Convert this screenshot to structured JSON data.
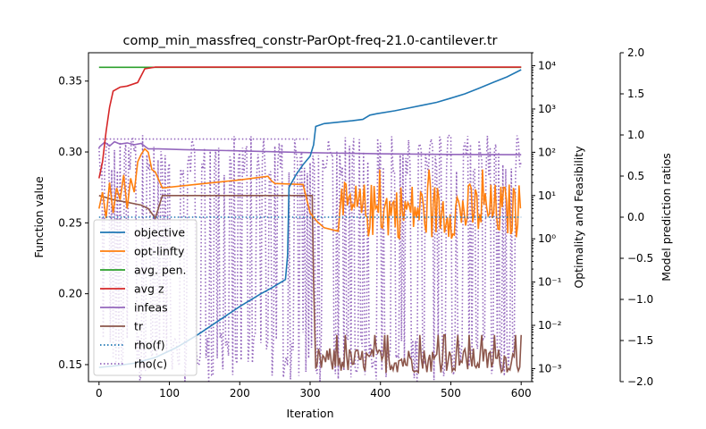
{
  "chart_data": {
    "type": "line",
    "title": "comp_min_massfreq_constr-ParOpt-freq-21.0-cantilever.tr",
    "xlabel": "Iteration",
    "ylabel_left": "Function value",
    "ylabel_right1": "Optimality and Feasibility",
    "ylabel_right2": "Model prediction ratios",
    "xlim": [
      -15,
      615
    ],
    "xticks": [
      0,
      100,
      200,
      300,
      400,
      500,
      600
    ],
    "xtick_labels": [
      "0",
      "100",
      "200",
      "300",
      "400",
      "500",
      "600"
    ],
    "y_left": {
      "lim": [
        0.138,
        0.37
      ],
      "ticks": [
        0.15,
        0.2,
        0.25,
        0.3,
        0.35
      ],
      "tick_labels": [
        "0.15",
        "0.20",
        "0.25",
        "0.30",
        "0.35"
      ]
    },
    "y_right1": {
      "scale": "log",
      "lim": [
        0.0005,
        20000
      ],
      "ticks": [
        0.001,
        0.01,
        0.1,
        1,
        10,
        100,
        1000,
        10000
      ],
      "tick_labels": [
        "10⁻³",
        "10⁻²",
        "10⁻¹",
        "10⁰",
        "10¹",
        "10²",
        "10³",
        "10⁴"
      ]
    },
    "y_right2": {
      "lim": [
        -2.0,
        2.0
      ],
      "ticks": [
        -2.0,
        -1.5,
        -1.0,
        -0.5,
        0.0,
        0.5,
        1.0,
        1.5,
        2.0
      ],
      "tick_labels": [
        "−2.0",
        "−1.5",
        "−1.0",
        "−0.5",
        "0.0",
        "0.5",
        "1.0",
        "1.5",
        "2.0"
      ]
    },
    "legend_position": "lower-left",
    "series": [
      {
        "name": "objective",
        "axis": "left",
        "color": "#1f77b4",
        "style": "solid",
        "points": [
          [
            0,
            0.148
          ],
          [
            20,
            0.149
          ],
          [
            50,
            0.151
          ],
          [
            80,
            0.155
          ],
          [
            110,
            0.162
          ],
          [
            140,
            0.171
          ],
          [
            170,
            0.181
          ],
          [
            200,
            0.191
          ],
          [
            230,
            0.2
          ],
          [
            245,
            0.204
          ],
          [
            265,
            0.21
          ],
          [
            268,
            0.227
          ],
          [
            270,
            0.275
          ],
          [
            280,
            0.284
          ],
          [
            290,
            0.291
          ],
          [
            300,
            0.297
          ],
          [
            305,
            0.305
          ],
          [
            308,
            0.318
          ],
          [
            320,
            0.32
          ],
          [
            340,
            0.321
          ],
          [
            360,
            0.322
          ],
          [
            375,
            0.323
          ],
          [
            385,
            0.326
          ],
          [
            395,
            0.327
          ],
          [
            420,
            0.329
          ],
          [
            440,
            0.331
          ],
          [
            460,
            0.333
          ],
          [
            480,
            0.335
          ],
          [
            500,
            0.338
          ],
          [
            520,
            0.341
          ],
          [
            540,
            0.345
          ],
          [
            560,
            0.349
          ],
          [
            580,
            0.353
          ],
          [
            600,
            0.358
          ]
        ]
      },
      {
        "name": "opt-linfty",
        "axis": "right1",
        "color": "#ff7f0e",
        "style": "solid",
        "points": [
          [
            0,
            5
          ],
          [
            5,
            12
          ],
          [
            10,
            3
          ],
          [
            15,
            20
          ],
          [
            20,
            4
          ],
          [
            25,
            15
          ],
          [
            30,
            8
          ],
          [
            35,
            30
          ],
          [
            40,
            5
          ],
          [
            45,
            25
          ],
          [
            50,
            12
          ],
          [
            55,
            60
          ],
          [
            60,
            90
          ],
          [
            65,
            120
          ],
          [
            70,
            100
          ],
          [
            75,
            40
          ],
          [
            80,
            35
          ],
          [
            90,
            15
          ],
          [
            150,
            19
          ],
          [
            200,
            23
          ],
          [
            240,
            28
          ],
          [
            245,
            22
          ],
          [
            250,
            19
          ],
          [
            290,
            18
          ],
          [
            300,
            4
          ],
          [
            310,
            2.5
          ],
          [
            320,
            1.8
          ],
          [
            340,
            1.5
          ]
        ],
        "noisy_from": 345,
        "noisy_to": 600,
        "noisy_range": [
          1,
          20
        ]
      },
      {
        "name": "avg. pen.",
        "axis": "right1",
        "color": "#2ca02c",
        "style": "solid",
        "points": [
          [
            0,
            9200
          ],
          [
            600,
            9200
          ]
        ]
      },
      {
        "name": "avg z",
        "axis": "right1",
        "color": "#d62728",
        "style": "solid",
        "points": [
          [
            0,
            25
          ],
          [
            5,
            60
          ],
          [
            10,
            300
          ],
          [
            15,
            1100
          ],
          [
            20,
            2600
          ],
          [
            30,
            3200
          ],
          [
            40,
            3400
          ],
          [
            55,
            4100
          ],
          [
            65,
            8500
          ],
          [
            80,
            9300
          ],
          [
            600,
            9300
          ]
        ]
      },
      {
        "name": "infeas",
        "axis": "right1",
        "color": "#9467bd",
        "style": "solid",
        "points": [
          [
            0,
            130
          ],
          [
            8,
            170
          ],
          [
            15,
            140
          ],
          [
            22,
            175
          ],
          [
            30,
            155
          ],
          [
            40,
            165
          ],
          [
            50,
            150
          ],
          [
            60,
            160
          ],
          [
            70,
            120
          ],
          [
            85,
            120
          ],
          [
            120,
            115
          ],
          [
            200,
            108
          ],
          [
            300,
            98
          ],
          [
            400,
            92
          ],
          [
            500,
            89
          ],
          [
            600,
            88
          ]
        ]
      },
      {
        "name": "tr",
        "axis": "right1",
        "color": "#8c564b",
        "style": "solid",
        "points": [
          [
            0,
            10
          ],
          [
            10,
            9
          ],
          [
            20,
            8
          ],
          [
            40,
            7
          ],
          [
            60,
            6
          ],
          [
            70,
            5
          ],
          [
            80,
            3
          ],
          [
            90,
            10
          ],
          [
            100,
            10
          ],
          [
            200,
            10
          ],
          [
            300,
            10
          ],
          [
            303,
            10
          ],
          [
            305,
            0.1
          ],
          [
            308,
            0.001
          ]
        ],
        "noisy_from": 310,
        "noisy_to": 600,
        "noisy_range": [
          0.0008,
          0.003
        ]
      },
      {
        "name": "rho(f)",
        "axis": "right2",
        "color": "#1f77b4",
        "style": "dotted",
        "points": [
          [
            0,
            0.0
          ],
          [
            600,
            0.0
          ]
        ]
      },
      {
        "name": "rho(c)",
        "axis": "right2",
        "color": "#9467bd",
        "style": "dotted",
        "points": [
          [
            0,
            0.95
          ],
          [
            300,
            0.95
          ]
        ],
        "noisy_from": 0,
        "noisy_to": 600,
        "noisy_range": [
          -2.0,
          1.0
        ]
      }
    ]
  }
}
